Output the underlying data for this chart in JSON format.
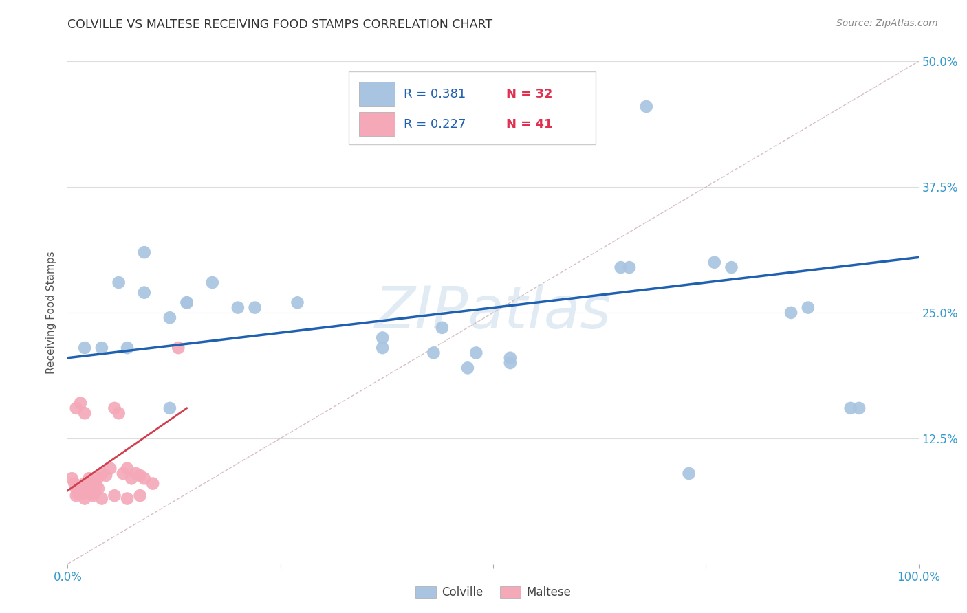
{
  "title": "COLVILLE VS MALTESE RECEIVING FOOD STAMPS CORRELATION CHART",
  "source": "Source: ZipAtlas.com",
  "ylabel": "Receiving Food Stamps",
  "xlim": [
    0.0,
    1.0
  ],
  "ylim": [
    0.0,
    0.5
  ],
  "xticks": [
    0.0,
    0.25,
    0.5,
    0.75,
    1.0
  ],
  "xtick_labels": [
    "0.0%",
    "",
    "",
    "",
    "100.0%"
  ],
  "yticks": [
    0.0,
    0.125,
    0.25,
    0.375,
    0.5
  ],
  "ytick_labels": [
    "",
    "12.5%",
    "25.0%",
    "37.5%",
    "50.0%"
  ],
  "colville_color": "#a8c4e0",
  "maltese_color": "#f4a8b8",
  "colville_line_color": "#2060b0",
  "maltese_line_color": "#d04050",
  "grid_color": "#dddddd",
  "watermark": "ZIPatlas",
  "colville_x": [
    0.02,
    0.06,
    0.09,
    0.09,
    0.04,
    0.07,
    0.12,
    0.14,
    0.2,
    0.14,
    0.17,
    0.22,
    0.27,
    0.37,
    0.37,
    0.43,
    0.44,
    0.52,
    0.52,
    0.65,
    0.66,
    0.68,
    0.76,
    0.78,
    0.85,
    0.87,
    0.92,
    0.93,
    0.12,
    0.47,
    0.48,
    0.73
  ],
  "colville_y": [
    0.215,
    0.28,
    0.31,
    0.27,
    0.215,
    0.215,
    0.245,
    0.26,
    0.255,
    0.26,
    0.28,
    0.255,
    0.26,
    0.215,
    0.225,
    0.21,
    0.235,
    0.2,
    0.205,
    0.295,
    0.295,
    0.455,
    0.3,
    0.295,
    0.25,
    0.255,
    0.155,
    0.155,
    0.155,
    0.195,
    0.21,
    0.09
  ],
  "maltese_x": [
    0.005,
    0.008,
    0.01,
    0.012,
    0.015,
    0.018,
    0.02,
    0.022,
    0.024,
    0.026,
    0.028,
    0.03,
    0.032,
    0.034,
    0.036,
    0.01,
    0.015,
    0.02,
    0.025,
    0.03,
    0.035,
    0.04,
    0.045,
    0.05,
    0.055,
    0.06,
    0.065,
    0.07,
    0.075,
    0.08,
    0.085,
    0.09,
    0.01,
    0.02,
    0.03,
    0.04,
    0.055,
    0.07,
    0.085,
    0.1,
    0.13
  ],
  "maltese_y": [
    0.085,
    0.08,
    0.075,
    0.07,
    0.075,
    0.07,
    0.08,
    0.078,
    0.075,
    0.072,
    0.07,
    0.075,
    0.072,
    0.078,
    0.075,
    0.155,
    0.16,
    0.15,
    0.085,
    0.08,
    0.085,
    0.09,
    0.088,
    0.095,
    0.155,
    0.15,
    0.09,
    0.095,
    0.085,
    0.09,
    0.088,
    0.085,
    0.068,
    0.065,
    0.068,
    0.065,
    0.068,
    0.065,
    0.068,
    0.08,
    0.215
  ],
  "colville_trendline_x": [
    0.0,
    1.0
  ],
  "colville_trendline_y": [
    0.205,
    0.305
  ],
  "maltese_trendline_x": [
    0.0,
    0.14
  ],
  "maltese_trendline_y": [
    0.073,
    0.155
  ],
  "dashed_line_x": [
    0.0,
    1.0
  ],
  "dashed_line_y": [
    0.0,
    0.5
  ]
}
